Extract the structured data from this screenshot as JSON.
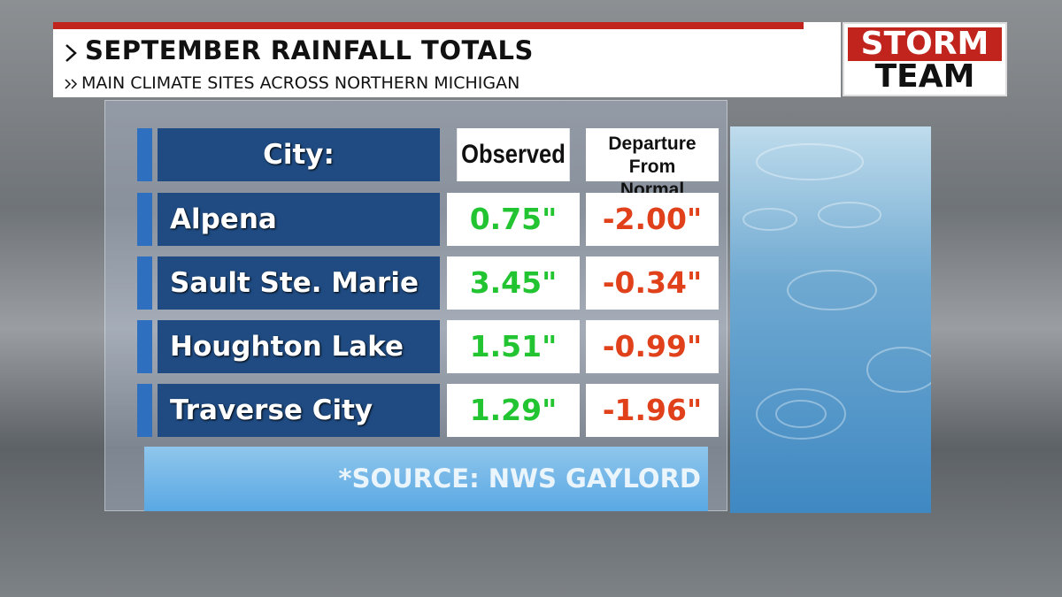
{
  "header": {
    "title": "SEPTEMBER RAINFALL TOTALS",
    "subtitle": "MAIN CLIMATE SITES ACROSS NORTHERN MICHIGAN"
  },
  "logo": {
    "top": "STORM",
    "bottom": "TEAM"
  },
  "table": {
    "columns": [
      "City:",
      "Observed",
      "Departure From Normal"
    ],
    "rows": [
      [
        "Alpena",
        "0.75\"",
        "-2.00\""
      ],
      [
        "Sault Ste. Marie",
        "3.45\"",
        "-0.34\""
      ],
      [
        "Houghton Lake",
        "1.51\"",
        "-0.99\""
      ],
      [
        "Traverse City",
        "1.29\"",
        "-1.96\""
      ]
    ]
  },
  "source": "*SOURCE: NWS GAYLORD"
}
